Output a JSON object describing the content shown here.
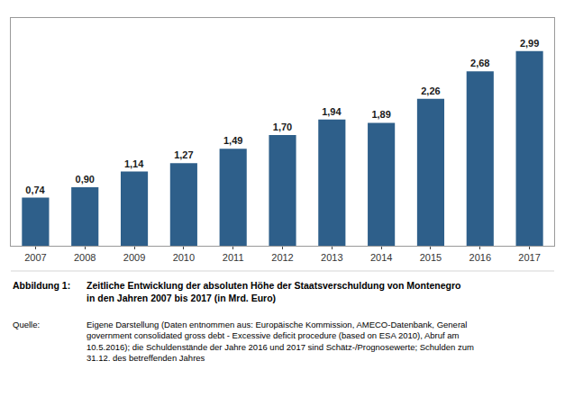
{
  "chart_data": {
    "type": "bar",
    "categories": [
      "2007",
      "2008",
      "2009",
      "2010",
      "2011",
      "2012",
      "2013",
      "2014",
      "2015",
      "2016",
      "2017"
    ],
    "values": [
      0.74,
      0.9,
      1.14,
      1.27,
      1.49,
      1.7,
      1.94,
      1.89,
      2.26,
      2.68,
      2.99
    ],
    "value_labels": [
      "0,74",
      "0,90",
      "1,14",
      "1,27",
      "1,49",
      "1,70",
      "1,94",
      "1,89",
      "2,26",
      "2,68",
      "2,99"
    ],
    "color": "#2E5F8A",
    "ylim": [
      0,
      3.5
    ],
    "grid": false,
    "data_labels": true,
    "tick_labels": "x",
    "annotations": [
      "Abbildung 1:",
      "Zeitliche Entwicklung der absoluten Höhe der Staatsverschuldung von Montenegro\nin den Jahren 2007 bis 2017 (in Mrd. Euro)",
      "Quelle:",
      "Eigene Darstellung (Daten entnommen aus: Europäische Kommission, AMECO-Datenbank, General\ngovernment consolidated gross debt - Excessive deficit procedure (based on ESA 2010), Abruf am\n10.5.2016); die Schuldenstände der Jahre 2016 und 2017 sind Schätz-/Prognosewerte; Schulden zum\n31.12. des betreffenden Jahres"
    ]
  }
}
